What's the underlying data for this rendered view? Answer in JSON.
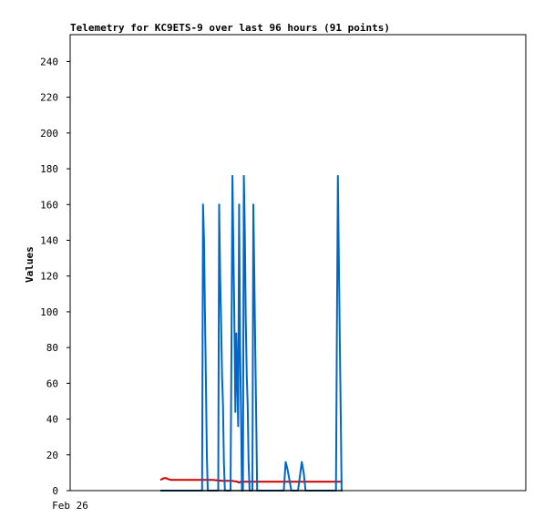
{
  "chart_data": {
    "type": "line",
    "title": "Telemetry for KC9ETS-9 over last 96 hours (91 points)",
    "xlabel": "",
    "ylabel": "Values",
    "ylim": [
      0,
      255
    ],
    "yticks": [
      0,
      20,
      40,
      60,
      80,
      100,
      120,
      140,
      160,
      180,
      200,
      220,
      240
    ],
    "xlim": [
      0,
      96
    ],
    "x_tick_labels": [
      {
        "x": 0,
        "label": "Feb 26"
      }
    ],
    "grid": false,
    "legend": "none",
    "series": [
      {
        "color": "#cc0000",
        "x": [
          19,
          19.4,
          19.8,
          20.2,
          20.6,
          21.2,
          22,
          24,
          26,
          28,
          30,
          32,
          34,
          35.2,
          35.6,
          36,
          38,
          40,
          42,
          44,
          46,
          48,
          50,
          52,
          54,
          56,
          57.4
        ],
        "values": [
          6,
          6.5,
          7,
          7,
          6.5,
          6,
          6,
          6,
          6,
          6,
          6,
          5.5,
          5.5,
          5,
          4.5,
          5,
          5,
          5,
          5,
          5,
          5,
          5,
          5,
          5,
          5,
          5,
          5
        ]
      },
      {
        "color": "#0066cc",
        "x": [
          19,
          27.8,
          28.0,
          28.2,
          28.4,
          28.6,
          28.8,
          29.0,
          29.2,
          29.4,
          29.6,
          31.2,
          31.4,
          31.6,
          31.8,
          32.0,
          32.2,
          32.4,
          32.6,
          32.8,
          33.0,
          33.6,
          33.8,
          34.0,
          34.2,
          34.4,
          34.6,
          34.8,
          35.0,
          35.2,
          35.4,
          35.6,
          35.8,
          36.0,
          36.2,
          36.4,
          36.6,
          36.8,
          37.0,
          37.2,
          37.4,
          37.6,
          37.8,
          38.0,
          38.2,
          38.4,
          38.6,
          38.8,
          39.0,
          39.2,
          39.4,
          39.6,
          40.2,
          40.4,
          40.6,
          40.8,
          41.0,
          41.2,
          41.4,
          41.6,
          42.0,
          42.4,
          42.6,
          42.8,
          43.0,
          43.2,
          43.4,
          45.0,
          45.4,
          45.8,
          46.2,
          46.6,
          47.0,
          48.0,
          48.4,
          48.8,
          49.2,
          49.6,
          50.0,
          56.0,
          56.2,
          56.4,
          56.6,
          56.8,
          57.0,
          57.2,
          57.4
        ],
        "values": [
          0,
          0,
          160,
          140,
          100,
          60,
          20,
          0,
          0,
          0,
          0,
          0,
          160,
          120,
          96,
          64,
          48,
          16,
          0,
          0,
          0,
          0,
          0,
          88,
          176,
          132,
          96,
          44,
          88,
          64,
          36,
          160,
          80,
          44,
          0,
          0,
          176,
          144,
          96,
          64,
          48,
          16,
          0,
          0,
          0,
          0,
          160,
          120,
          80,
          40,
          0,
          0,
          0,
          0,
          0,
          0,
          0,
          0,
          0,
          0,
          0,
          0,
          0,
          0,
          0,
          0,
          0,
          0,
          16,
          12,
          6,
          0,
          0,
          0,
          8,
          16,
          10,
          0,
          0,
          0,
          88,
          176,
          132,
          88,
          44,
          0,
          0
        ]
      },
      {
        "color": "#000000",
        "x": [
          19,
          57.4
        ],
        "values": [
          0,
          0
        ]
      }
    ]
  }
}
